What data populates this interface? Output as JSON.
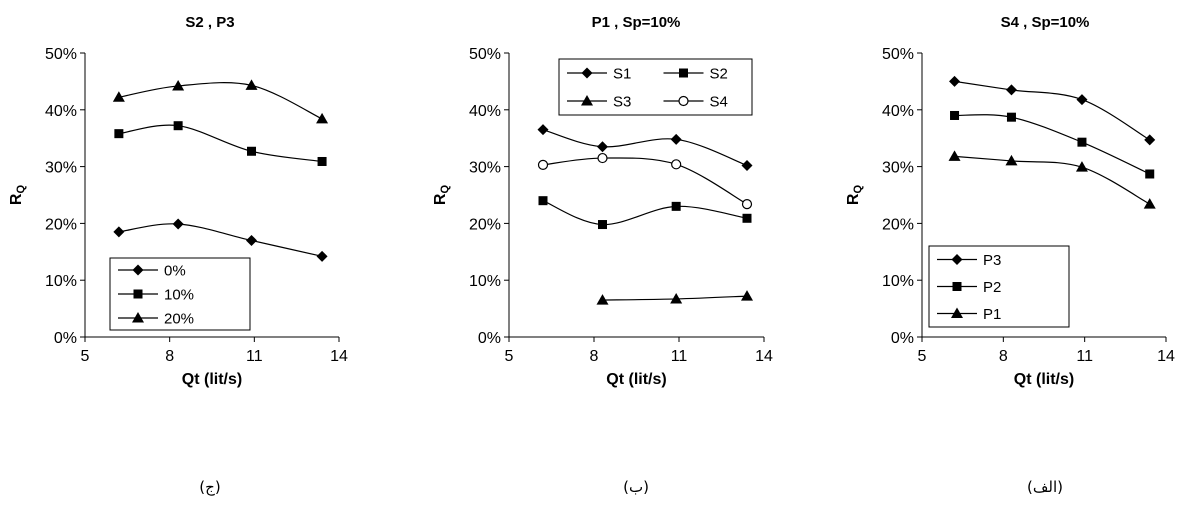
{
  "panels": [
    {
      "caption": "(ج)",
      "chart_data": {
        "type": "line",
        "title": "S2 , P3",
        "xlabel": "Qt (lit/s)",
        "ylabel": "RQ",
        "xlim": [
          5,
          14
        ],
        "xticks": [
          5,
          8,
          11,
          14
        ],
        "ylim": [
          0,
          50
        ],
        "yticks": [
          0,
          10,
          20,
          30,
          40,
          50
        ],
        "ytick_labels": [
          "0%",
          "10%",
          "20%",
          "30%",
          "40%",
          "50%"
        ],
        "grid": false,
        "legend": "bottom-left",
        "series": [
          {
            "name": "0%",
            "marker": "diamond",
            "x": [
              6.2,
              8.3,
              10.9,
              13.4
            ],
            "y": [
              18.5,
              19.9,
              17.0,
              14.2
            ]
          },
          {
            "name": "10%",
            "marker": "square",
            "x": [
              6.2,
              8.3,
              10.9,
              13.4
            ],
            "y": [
              35.8,
              37.2,
              32.7,
              30.9
            ]
          },
          {
            "name": "20%",
            "marker": "triangle",
            "x": [
              6.2,
              8.3,
              10.9,
              13.4
            ],
            "y": [
              42.2,
              44.2,
              44.3,
              38.4
            ]
          }
        ]
      }
    },
    {
      "caption": "(ب)",
      "chart_data": {
        "type": "line",
        "title": "P1 , Sp=10%",
        "xlabel": "Qt (lit/s)",
        "ylabel": "RQ",
        "xlim": [
          5,
          14
        ],
        "xticks": [
          5,
          8,
          11,
          14
        ],
        "ylim": [
          0,
          50
        ],
        "yticks": [
          0,
          10,
          20,
          30,
          40,
          50
        ],
        "ytick_labels": [
          "0%",
          "10%",
          "20%",
          "30%",
          "40%",
          "50%"
        ],
        "grid": false,
        "legend": "top-right",
        "series": [
          {
            "name": "S1",
            "marker": "diamond",
            "x": [
              6.2,
              8.3,
              10.9,
              13.4
            ],
            "y": [
              36.5,
              33.5,
              34.8,
              30.2
            ]
          },
          {
            "name": "S2",
            "marker": "square",
            "x": [
              6.2,
              8.3,
              10.9,
              13.4
            ],
            "y": [
              24.0,
              19.8,
              23.0,
              20.9
            ]
          },
          {
            "name": "S3",
            "marker": "triangle",
            "x": [
              8.3,
              10.9,
              13.4
            ],
            "y": [
              6.5,
              6.7,
              7.2
            ]
          },
          {
            "name": "S4",
            "marker": "circle",
            "x": [
              6.2,
              8.3,
              10.9,
              13.4
            ],
            "y": [
              30.3,
              31.5,
              30.4,
              23.4
            ]
          }
        ]
      }
    },
    {
      "caption": "(الف)",
      "chart_data": {
        "type": "line",
        "title": "S4 , Sp=10%",
        "xlabel": "Qt (lit/s)",
        "ylabel": "RQ",
        "xlim": [
          5,
          14
        ],
        "xticks": [
          5,
          8,
          11,
          14
        ],
        "ylim": [
          0,
          50
        ],
        "yticks": [
          0,
          10,
          20,
          30,
          40,
          50
        ],
        "ytick_labels": [
          "0%",
          "10%",
          "20%",
          "30%",
          "40%",
          "50%"
        ],
        "grid": false,
        "legend": "bottom-left",
        "series": [
          {
            "name": "P3",
            "marker": "diamond",
            "x": [
              6.2,
              8.3,
              10.9,
              13.4
            ],
            "y": [
              45.0,
              43.5,
              41.8,
              34.7
            ]
          },
          {
            "name": "P2",
            "marker": "square",
            "x": [
              6.2,
              8.3,
              10.9,
              13.4
            ],
            "y": [
              39.0,
              38.7,
              34.3,
              28.7
            ]
          },
          {
            "name": "P1",
            "marker": "triangle",
            "x": [
              6.2,
              8.3,
              10.9,
              13.4
            ],
            "y": [
              31.8,
              31.0,
              29.9,
              23.4
            ]
          }
        ]
      }
    }
  ]
}
